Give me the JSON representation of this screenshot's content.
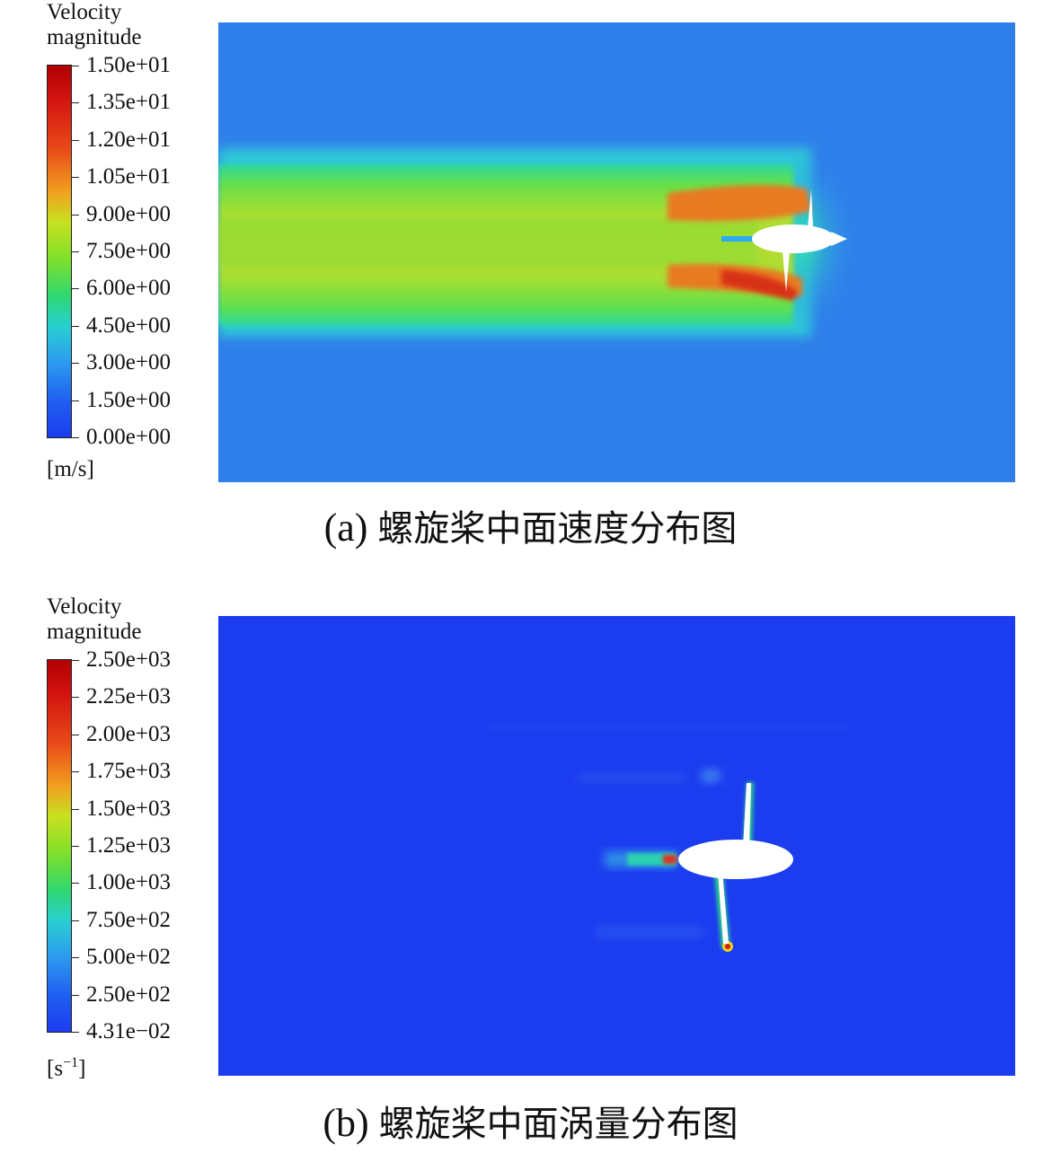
{
  "chart_data": [
    {
      "type": "heatmap",
      "legend": {
        "title_line1": "Velocity",
        "title_line2": "magnitude",
        "unit": "[m/s]",
        "ticks": [
          "1.50e+01",
          "1.35e+01",
          "1.20e+01",
          "1.05e+01",
          "9.00e+00",
          "7.50e+00",
          "6.00e+00",
          "4.50e+00",
          "3.00e+00",
          "1.50e+00",
          "0.00e+00"
        ],
        "range": [
          0,
          15
        ]
      },
      "caption_prefix": "(a)",
      "caption_text": "螺旋桨中面速度分布图"
    },
    {
      "type": "heatmap",
      "legend": {
        "title_line1": "Velocity",
        "title_line2": "magnitude",
        "unit_base": "[s",
        "unit_sup": "−1",
        "unit_end": "]",
        "ticks": [
          "2.50e+03",
          "2.25e+03",
          "2.00e+03",
          "1.75e+03",
          "1.50e+03",
          "1.25e+03",
          "1.00e+03",
          "7.50e+02",
          "5.00e+02",
          "2.50e+02",
          "4.31e−02"
        ],
        "range": [
          0.0431,
          2500
        ]
      },
      "caption_prefix": "(b)",
      "caption_text": "螺旋桨中面涡量分布图"
    }
  ],
  "colormap": [
    "#1c3cf0",
    "#2d8ff0",
    "#28d6d6",
    "#2fe070",
    "#8de02a",
    "#e0e020",
    "#f0a020",
    "#e84818",
    "#c01010",
    "#b00000"
  ]
}
